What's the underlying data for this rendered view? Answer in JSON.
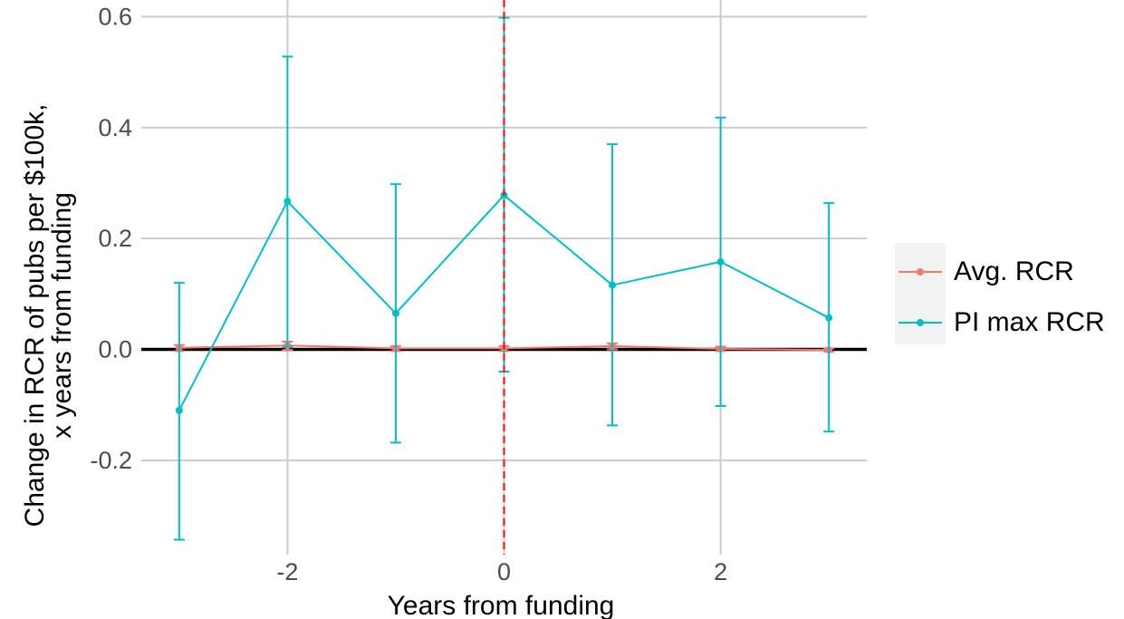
{
  "chart_data": {
    "type": "line",
    "xlabel": "Years from funding",
    "ylabel_line1": "Change in RCR of pubs per $100k,",
    "ylabel_line2": "x years from funding",
    "xlim": [
      -3.35,
      3.35
    ],
    "ylim": [
      -0.37,
      0.63
    ],
    "x_ticks": [
      -2,
      0,
      2
    ],
    "x_tick_labels": [
      "-2",
      "0",
      "2"
    ],
    "y_ticks": [
      -0.2,
      0.0,
      0.2,
      0.4,
      0.6
    ],
    "y_tick_labels": [
      "-0.2",
      "0.0",
      "0.2",
      "0.4",
      "0.6"
    ],
    "grid": true,
    "hline_y": 0,
    "vline_x": 0,
    "legend_position": "right",
    "series": [
      {
        "name": "Avg. RCR",
        "color": "#F8766D",
        "x": [
          -3,
          -2,
          -1,
          0,
          1,
          2,
          3
        ],
        "y": [
          0.003,
          0.007,
          0.002,
          0.002,
          0.006,
          0.001,
          -0.001
        ],
        "lower": [
          -0.003,
          -0.001,
          -0.003,
          -0.003,
          0.0,
          -0.003,
          -0.004
        ],
        "upper": [
          0.008,
          0.014,
          0.006,
          0.006,
          0.011,
          0.005,
          0.002
        ]
      },
      {
        "name": "PI max RCR",
        "color": "#00BFC4",
        "x": [
          -3,
          -2,
          -1,
          0,
          1,
          2,
          3
        ],
        "y": [
          -0.11,
          0.267,
          0.065,
          0.278,
          0.116,
          0.158,
          0.057
        ],
        "lower": [
          -0.343,
          0.005,
          -0.168,
          -0.04,
          -0.137,
          -0.102,
          -0.148
        ],
        "upper": [
          0.12,
          0.528,
          0.298,
          0.598,
          0.37,
          0.418,
          0.264
        ]
      }
    ]
  }
}
